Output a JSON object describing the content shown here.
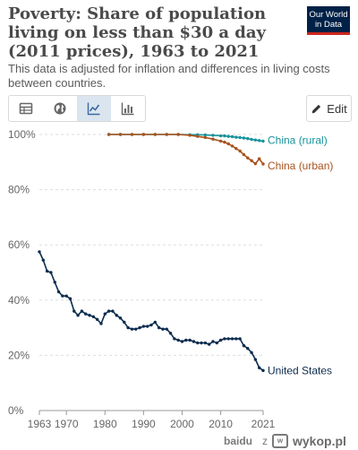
{
  "header": {
    "title": "Poverty: Share of population living on less than $30 a day (2011 prices), 1963 to 2021",
    "subtitle": "This data is adjusted for inflation and differences in living costs between countries.",
    "logo_line1": "Our World",
    "logo_line2": "in Data"
  },
  "toolbar": {
    "tabs": [
      {
        "icon": "table-icon"
      },
      {
        "icon": "globe-icon"
      },
      {
        "icon": "line-chart-icon",
        "active": true
      },
      {
        "icon": "bar-chart-icon"
      }
    ],
    "edit_label": "Edit"
  },
  "colors": {
    "us": "#0d2c4e",
    "china_rural": "#17929a",
    "china_urban": "#a9521e",
    "grid": "#dddddd",
    "axis_text": "#666666"
  },
  "chart_data": {
    "type": "line",
    "title": "Poverty: Share of population living on less than $30 a day (2011 prices), 1963 to 2021",
    "subtitle": "This data is adjusted for inflation and differences in living costs between countries.",
    "xlabel": "",
    "ylabel": "",
    "xlim": [
      1963,
      2021
    ],
    "ylim": [
      0,
      100
    ],
    "x_ticks": [
      "1963",
      "1970",
      "1980",
      "1990",
      "2000",
      "2010",
      "2021"
    ],
    "x_tick_values": [
      1963,
      1970,
      1980,
      1990,
      2000,
      2010,
      2021
    ],
    "y_ticks": [
      "0%",
      "20%",
      "40%",
      "60%",
      "80%",
      "100%"
    ],
    "y_tick_values": [
      0,
      20,
      40,
      60,
      80,
      100
    ],
    "grid": "horizontal dashed",
    "legend": "inline line-end labels",
    "series": [
      {
        "name": "United States",
        "x": [
          1963,
          1964,
          1965,
          1966,
          1967,
          1968,
          1969,
          1970,
          1971,
          1972,
          1973,
          1974,
          1975,
          1976,
          1977,
          1978,
          1979,
          1980,
          1981,
          1982,
          1983,
          1984,
          1985,
          1986,
          1987,
          1988,
          1989,
          1990,
          1991,
          1992,
          1993,
          1994,
          1995,
          1996,
          1997,
          1998,
          1999,
          2000,
          2001,
          2002,
          2003,
          2004,
          2005,
          2006,
          2007,
          2008,
          2009,
          2010,
          2011,
          2012,
          2013,
          2014,
          2015,
          2016,
          2017,
          2018,
          2019,
          2020,
          2021
        ],
        "values": [
          57.5,
          54.5,
          50.5,
          50,
          46.5,
          43,
          41.5,
          41.5,
          40.5,
          36,
          34.5,
          36,
          35,
          34.5,
          34,
          33,
          31.5,
          35,
          36,
          36,
          34.5,
          33.5,
          32,
          30,
          29.5,
          29.5,
          30,
          30.5,
          30.5,
          31,
          32,
          30,
          29.5,
          29.5,
          28,
          26,
          25.5,
          25,
          25.5,
          25.5,
          25,
          24.5,
          24.5,
          24.5,
          24,
          25,
          24.5,
          25.5,
          26,
          26,
          26,
          26,
          26,
          23.5,
          22.5,
          21,
          18.5,
          15.5,
          14.5
        ]
      },
      {
        "name": "China (rural)",
        "x": [
          1981,
          1984,
          1987,
          1990,
          1993,
          1996,
          1999,
          2002,
          2004,
          2006,
          2008,
          2010,
          2011,
          2012,
          2013,
          2014,
          2015,
          2016,
          2017,
          2018,
          2019,
          2020,
          2021
        ],
        "values": [
          100,
          100,
          100,
          100,
          100,
          100,
          100,
          99.9,
          99.9,
          99.8,
          99.7,
          99.5,
          99.5,
          99.3,
          99.2,
          99.0,
          98.9,
          98.7,
          98.5,
          98.2,
          98.0,
          97.8,
          97.6
        ]
      },
      {
        "name": "China (urban)",
        "x": [
          1981,
          1984,
          1987,
          1990,
          1993,
          1996,
          1999,
          2002,
          2004,
          2006,
          2008,
          2010,
          2011,
          2012,
          2013,
          2014,
          2015,
          2016,
          2017,
          2018,
          2019,
          2020,
          2021
        ],
        "values": [
          100,
          100,
          100,
          100,
          100,
          100,
          100,
          99.7,
          99.3,
          98.9,
          98.3,
          97.6,
          97.2,
          96.6,
          95.8,
          94.9,
          94.0,
          92.7,
          91.5,
          90.5,
          89.4,
          91.2,
          89.3
        ]
      }
    ]
  },
  "watermark": {
    "source": "baidu",
    "separator": "z",
    "site": "wykop.pl"
  }
}
